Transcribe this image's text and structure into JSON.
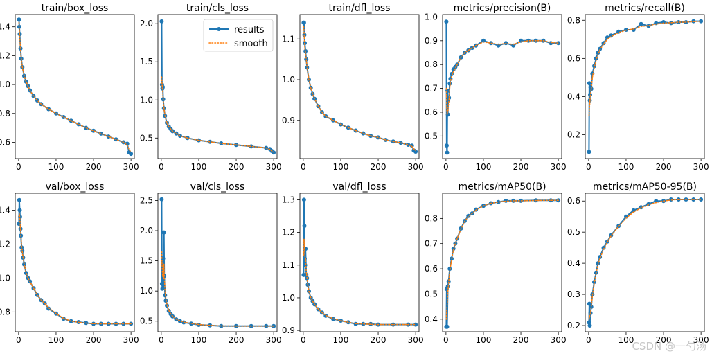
{
  "watermark": "CSDN @一勺汤",
  "colors": {
    "results": "#1f77b4",
    "smooth": "#ff7f0e",
    "axis": "#000000"
  },
  "legend": {
    "results": "results",
    "smooth": "smooth",
    "placement": "top-right of train/cls_loss"
  },
  "chart_data": [
    {
      "type": "line",
      "title": "train/box_loss",
      "xlim": [
        -9,
        309
      ],
      "ylim": [
        0.487,
        1.485
      ],
      "xticks": [
        0,
        100,
        200,
        300
      ],
      "yticks": [
        0.6,
        0.8,
        1.0,
        1.2,
        1.4
      ],
      "ytick_labels": [
        "0.6",
        "0.8",
        "1.0",
        "1.2",
        "1.4"
      ],
      "x": [
        1,
        2,
        3,
        5,
        7,
        10,
        15,
        20,
        25,
        30,
        40,
        50,
        60,
        80,
        100,
        120,
        140,
        160,
        180,
        200,
        220,
        240,
        260,
        280,
        290,
        295,
        300
      ],
      "results": [
        1.45,
        1.4,
        1.35,
        1.25,
        1.18,
        1.12,
        1.06,
        1.02,
        0.99,
        0.96,
        0.92,
        0.89,
        0.865,
        0.83,
        0.8,
        0.775,
        0.75,
        0.725,
        0.7,
        0.68,
        0.66,
        0.64,
        0.62,
        0.6,
        0.59,
        0.53,
        0.52
      ],
      "smooth": [
        1.43,
        1.38,
        1.33,
        1.25,
        1.18,
        1.12,
        1.06,
        1.02,
        0.99,
        0.96,
        0.92,
        0.89,
        0.865,
        0.83,
        0.8,
        0.775,
        0.75,
        0.725,
        0.7,
        0.68,
        0.66,
        0.64,
        0.62,
        0.6,
        0.58,
        0.55,
        0.53
      ]
    },
    {
      "type": "line",
      "title": "train/cls_loss",
      "xlim": [
        -9,
        309
      ],
      "ylim": [
        0.23,
        2.12
      ],
      "xticks": [
        0,
        100,
        200,
        300
      ],
      "yticks": [
        0.5,
        1.0,
        1.5,
        2.0
      ],
      "ytick_labels": [
        "0.5",
        "1.0",
        "1.5",
        "2.0"
      ],
      "x": [
        1,
        2,
        3,
        4,
        5,
        7,
        10,
        15,
        20,
        25,
        30,
        40,
        50,
        70,
        100,
        130,
        160,
        200,
        240,
        280,
        290,
        295,
        300
      ],
      "results": [
        2.03,
        1.2,
        1.15,
        1.17,
        1.01,
        0.89,
        0.79,
        0.7,
        0.65,
        0.62,
        0.59,
        0.56,
        0.53,
        0.5,
        0.47,
        0.45,
        0.43,
        0.41,
        0.39,
        0.37,
        0.355,
        0.33,
        0.31
      ],
      "smooth": [
        1.3,
        1.22,
        1.15,
        1.1,
        1.01,
        0.89,
        0.79,
        0.7,
        0.65,
        0.62,
        0.59,
        0.56,
        0.53,
        0.5,
        0.47,
        0.45,
        0.43,
        0.41,
        0.39,
        0.37,
        0.35,
        0.33,
        0.315
      ]
    },
    {
      "type": "line",
      "title": "train/dfl_loss",
      "xlim": [
        -9,
        309
      ],
      "ylim": [
        0.806,
        1.16
      ],
      "xticks": [
        0,
        100,
        200,
        300
      ],
      "yticks": [
        0.9,
        1.0,
        1.1
      ],
      "ytick_labels": [
        "0.9",
        "1.0",
        "1.1"
      ],
      "x": [
        1,
        2,
        3,
        4,
        6,
        8,
        10,
        15,
        20,
        25,
        30,
        40,
        50,
        60,
        80,
        100,
        120,
        140,
        160,
        180,
        200,
        220,
        240,
        260,
        280,
        290,
        295,
        300
      ],
      "results": [
        1.14,
        1.14,
        1.11,
        1.09,
        1.07,
        1.05,
        1.03,
        1.0,
        0.98,
        0.965,
        0.953,
        0.935,
        0.92,
        0.91,
        0.9,
        0.89,
        0.882,
        0.875,
        0.868,
        0.862,
        0.858,
        0.852,
        0.848,
        0.845,
        0.84,
        0.838,
        0.826,
        0.823
      ],
      "smooth": [
        1.13,
        1.12,
        1.1,
        1.08,
        1.065,
        1.05,
        1.03,
        1.0,
        0.98,
        0.965,
        0.953,
        0.935,
        0.92,
        0.91,
        0.9,
        0.89,
        0.882,
        0.875,
        0.868,
        0.862,
        0.858,
        0.852,
        0.848,
        0.845,
        0.84,
        0.836,
        0.83,
        0.826
      ]
    },
    {
      "type": "line",
      "title": "metrics/precision(B)",
      "xlim": [
        -9,
        309
      ],
      "ylim": [
        0.405,
        1.01
      ],
      "xticks": [
        0,
        100,
        200,
        300
      ],
      "yticks": [
        0.5,
        0.6,
        0.7,
        0.8,
        0.9,
        1.0
      ],
      "ytick_labels": [
        "0.5",
        "0.6",
        "0.7",
        "0.8",
        "0.9",
        "1.0"
      ],
      "x": [
        1,
        2,
        3,
        4,
        5,
        6,
        8,
        10,
        12,
        15,
        20,
        25,
        30,
        40,
        50,
        60,
        70,
        80,
        100,
        120,
        140,
        160,
        180,
        200,
        220,
        240,
        260,
        280,
        300
      ],
      "results": [
        0.98,
        0.46,
        0.43,
        0.69,
        0.59,
        0.65,
        0.66,
        0.72,
        0.74,
        0.76,
        0.78,
        0.79,
        0.8,
        0.83,
        0.85,
        0.86,
        0.87,
        0.88,
        0.9,
        0.89,
        0.88,
        0.89,
        0.88,
        0.9,
        0.9,
        0.9,
        0.9,
        0.89,
        0.89
      ],
      "smooth": [
        0.7,
        0.63,
        0.59,
        0.6,
        0.6,
        0.62,
        0.65,
        0.7,
        0.73,
        0.75,
        0.77,
        0.785,
        0.8,
        0.83,
        0.85,
        0.86,
        0.87,
        0.88,
        0.895,
        0.89,
        0.885,
        0.888,
        0.885,
        0.895,
        0.9,
        0.9,
        0.9,
        0.893,
        0.89
      ]
    },
    {
      "type": "line",
      "title": "metrics/recall(B)",
      "xlim": [
        -9,
        309
      ],
      "ylim": [
        0.075,
        0.83
      ],
      "xticks": [
        0,
        100,
        200,
        300
      ],
      "yticks": [
        0.2,
        0.4,
        0.6,
        0.8
      ],
      "ytick_labels": [
        "0.2",
        "0.4",
        "0.6",
        "0.8"
      ],
      "x": [
        1,
        2,
        3,
        4,
        5,
        7,
        10,
        15,
        20,
        25,
        30,
        40,
        50,
        60,
        80,
        100,
        120,
        140,
        160,
        180,
        200,
        220,
        240,
        260,
        280,
        300
      ],
      "results": [
        0.11,
        0.47,
        0.38,
        0.41,
        0.45,
        0.44,
        0.52,
        0.56,
        0.6,
        0.63,
        0.65,
        0.68,
        0.71,
        0.72,
        0.74,
        0.75,
        0.75,
        0.78,
        0.77,
        0.785,
        0.79,
        0.785,
        0.79,
        0.79,
        0.795,
        0.795
      ],
      "smooth": [
        0.3,
        0.33,
        0.36,
        0.39,
        0.41,
        0.44,
        0.5,
        0.55,
        0.59,
        0.62,
        0.645,
        0.675,
        0.7,
        0.715,
        0.735,
        0.748,
        0.755,
        0.768,
        0.772,
        0.78,
        0.785,
        0.787,
        0.79,
        0.79,
        0.793,
        0.795
      ]
    },
    {
      "type": "line",
      "title": "val/box_loss",
      "xlim": [
        -9,
        309
      ],
      "ylim": [
        0.683,
        1.5
      ],
      "xticks": [
        0,
        100,
        200,
        300
      ],
      "yticks": [
        0.8,
        1.0,
        1.2,
        1.4
      ],
      "ytick_labels": [
        "0.8",
        "1.0",
        "1.2",
        "1.4"
      ],
      "x": [
        1,
        2,
        3,
        4,
        5,
        6,
        8,
        10,
        12,
        15,
        20,
        25,
        30,
        40,
        50,
        60,
        70,
        80,
        100,
        120,
        140,
        160,
        180,
        200,
        220,
        240,
        260,
        280,
        300
      ],
      "results": [
        1.32,
        1.46,
        1.4,
        1.36,
        1.29,
        1.25,
        1.18,
        1.16,
        1.12,
        1.08,
        1.03,
        1.0,
        0.98,
        0.94,
        0.9,
        0.87,
        0.85,
        0.82,
        0.79,
        0.76,
        0.745,
        0.74,
        0.735,
        0.73,
        0.73,
        0.73,
        0.73,
        0.73,
        0.73
      ],
      "smooth": [
        1.36,
        1.38,
        1.36,
        1.33,
        1.29,
        1.25,
        1.19,
        1.15,
        1.12,
        1.08,
        1.03,
        1.0,
        0.98,
        0.94,
        0.9,
        0.87,
        0.85,
        0.825,
        0.79,
        0.762,
        0.746,
        0.739,
        0.734,
        0.731,
        0.73,
        0.73,
        0.73,
        0.73,
        0.73
      ]
    },
    {
      "type": "line",
      "title": "val/cls_loss",
      "xlim": [
        -9,
        309
      ],
      "ylim": [
        0.325,
        2.62
      ],
      "xticks": [
        0,
        100,
        200,
        300
      ],
      "yticks": [
        0.5,
        1.0,
        1.5,
        2.0,
        2.5
      ],
      "ytick_labels": [
        "0.5",
        "1.0",
        "1.5",
        "2.0",
        "2.5"
      ],
      "x": [
        1,
        2,
        3,
        4,
        5,
        6,
        7,
        8,
        10,
        12,
        15,
        20,
        25,
        30,
        40,
        50,
        60,
        80,
        100,
        130,
        160,
        200,
        240,
        280,
        300
      ],
      "results": [
        2.52,
        1.12,
        1.04,
        1.13,
        1.54,
        1.05,
        1.97,
        1.25,
        0.93,
        0.84,
        0.76,
        0.67,
        0.62,
        0.58,
        0.53,
        0.5,
        0.48,
        0.46,
        0.44,
        0.43,
        0.42,
        0.42,
        0.42,
        0.42,
        0.42
      ],
      "smooth": [
        1.65,
        1.45,
        1.3,
        1.24,
        1.3,
        1.2,
        1.45,
        1.25,
        1.0,
        0.88,
        0.78,
        0.68,
        0.625,
        0.585,
        0.535,
        0.505,
        0.485,
        0.462,
        0.445,
        0.43,
        0.423,
        0.42,
        0.42,
        0.42,
        0.42
      ]
    },
    {
      "type": "line",
      "title": "val/dfl_loss",
      "xlim": [
        -9,
        309
      ],
      "ylim": [
        0.896,
        1.32
      ],
      "xticks": [
        0,
        100,
        200,
        300
      ],
      "yticks": [
        0.9,
        1.0,
        1.1,
        1.2,
        1.3
      ],
      "ytick_labels": [
        "0.9",
        "1.0",
        "1.1",
        "1.2",
        "1.3"
      ],
      "x": [
        1,
        2,
        3,
        4,
        5,
        6,
        8,
        10,
        12,
        15,
        20,
        25,
        30,
        40,
        50,
        60,
        80,
        100,
        120,
        140,
        160,
        180,
        200,
        240,
        280,
        300
      ],
      "results": [
        1.07,
        1.3,
        1.22,
        1.12,
        1.1,
        1.15,
        1.07,
        1.06,
        1.04,
        1.02,
        1.0,
        0.99,
        0.98,
        0.965,
        0.955,
        0.945,
        0.935,
        0.93,
        0.925,
        0.92,
        0.92,
        0.92,
        0.918,
        0.918,
        0.918,
        0.918
      ],
      "smooth": [
        1.13,
        1.18,
        1.17,
        1.14,
        1.12,
        1.12,
        1.08,
        1.06,
        1.04,
        1.02,
        1.0,
        0.99,
        0.98,
        0.966,
        0.955,
        0.946,
        0.936,
        0.93,
        0.925,
        0.921,
        0.92,
        0.919,
        0.918,
        0.918,
        0.918,
        0.918
      ]
    },
    {
      "type": "line",
      "title": "metrics/mAP50(B)",
      "xlim": [
        -9,
        309
      ],
      "ylim": [
        0.35,
        0.9
      ],
      "xticks": [
        0,
        100,
        200,
        300
      ],
      "yticks": [
        0.4,
        0.5,
        0.6,
        0.7,
        0.8
      ],
      "ytick_labels": [
        "0.4",
        "0.5",
        "0.6",
        "0.7",
        "0.8"
      ],
      "x": [
        1,
        2,
        3,
        5,
        7,
        10,
        15,
        20,
        25,
        30,
        40,
        50,
        60,
        70,
        80,
        100,
        120,
        140,
        160,
        180,
        200,
        240,
        280,
        300
      ],
      "results": [
        0.37,
        0.52,
        0.37,
        0.53,
        0.55,
        0.6,
        0.64,
        0.68,
        0.7,
        0.72,
        0.76,
        0.79,
        0.81,
        0.82,
        0.835,
        0.85,
        0.86,
        0.865,
        0.87,
        0.87,
        0.87,
        0.872,
        0.872,
        0.872
      ],
      "smooth": [
        0.4,
        0.44,
        0.45,
        0.51,
        0.54,
        0.59,
        0.635,
        0.675,
        0.7,
        0.72,
        0.758,
        0.788,
        0.808,
        0.82,
        0.833,
        0.85,
        0.86,
        0.865,
        0.868,
        0.87,
        0.87,
        0.871,
        0.872,
        0.872
      ]
    },
    {
      "type": "line",
      "title": "metrics/mAP50-95(B)",
      "xlim": [
        -9,
        309
      ],
      "ylim": [
        0.18,
        0.625
      ],
      "xticks": [
        0,
        100,
        200,
        300
      ],
      "yticks": [
        0.2,
        0.3,
        0.4,
        0.5,
        0.6
      ],
      "ytick_labels": [
        "0.2",
        "0.3",
        "0.4",
        "0.5",
        "0.6"
      ],
      "x": [
        1,
        2,
        3,
        5,
        7,
        10,
        15,
        20,
        25,
        30,
        40,
        50,
        60,
        80,
        100,
        120,
        140,
        160,
        180,
        200,
        220,
        240,
        260,
        280,
        300
      ],
      "results": [
        0.21,
        0.27,
        0.2,
        0.24,
        0.26,
        0.3,
        0.34,
        0.37,
        0.4,
        0.42,
        0.45,
        0.47,
        0.49,
        0.52,
        0.55,
        0.57,
        0.58,
        0.59,
        0.6,
        0.6,
        0.605,
        0.605,
        0.605,
        0.605,
        0.605
      ],
      "smooth": [
        0.22,
        0.235,
        0.23,
        0.24,
        0.26,
        0.295,
        0.335,
        0.368,
        0.395,
        0.415,
        0.445,
        0.468,
        0.488,
        0.518,
        0.545,
        0.565,
        0.578,
        0.588,
        0.595,
        0.6,
        0.603,
        0.605,
        0.605,
        0.605,
        0.605
      ]
    }
  ]
}
